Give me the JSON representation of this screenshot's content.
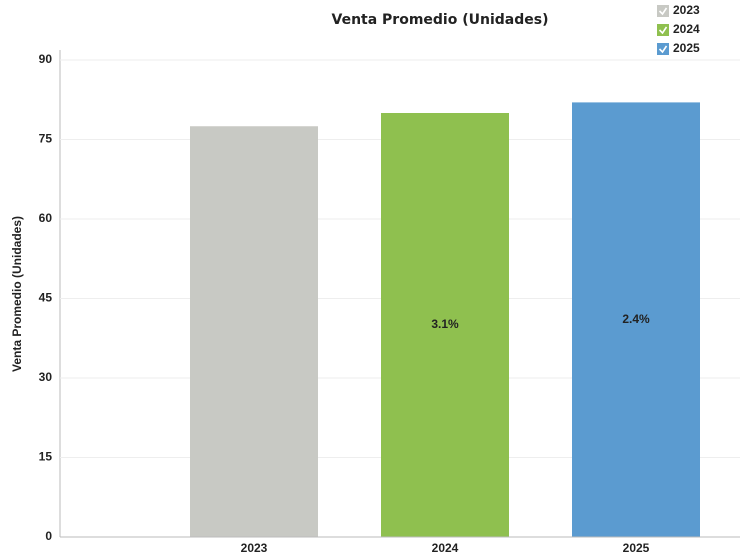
{
  "chart_data": {
    "type": "bar",
    "title": "Venta Promedio (Unidades)",
    "y_label": "Venta Promedio (Unidades)",
    "categories": [
      "2023",
      "2024",
      "2025"
    ],
    "values": [
      77.5,
      80,
      82
    ],
    "colors": [
      "#c8c9c4",
      "#8fc04f",
      "#5b9bd0"
    ],
    "bar_labels": [
      null,
      "3.1%",
      "2.4%"
    ],
    "ylim": [
      0,
      90
    ],
    "yticks": [
      0,
      15,
      30,
      45,
      60,
      75,
      90
    ],
    "grid": true,
    "legend": "top-right"
  }
}
